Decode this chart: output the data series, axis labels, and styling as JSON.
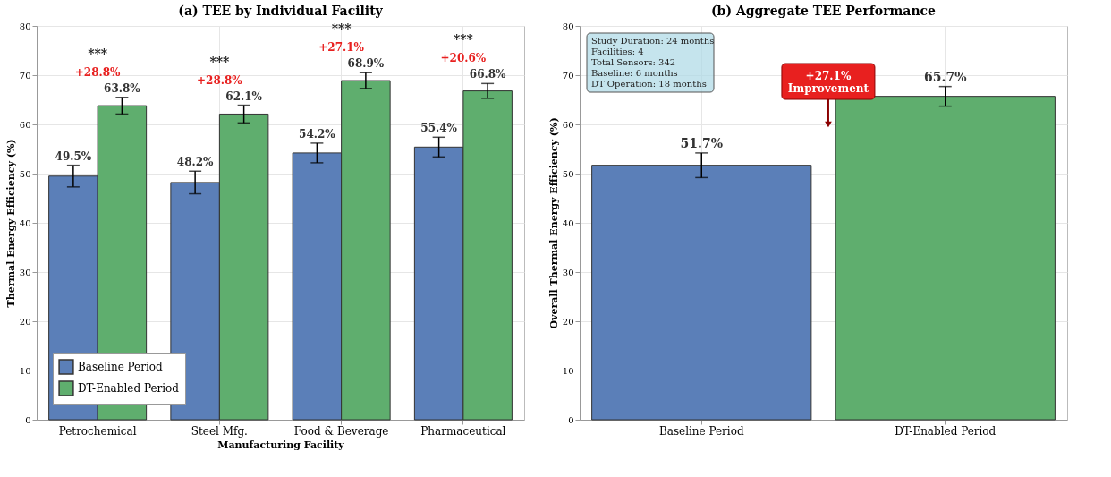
{
  "chart_data": [
    {
      "type": "bar",
      "title": "(a) TEE by Individual Facility",
      "xlabel": "Manufacturing Facility",
      "ylabel": "Thermal Energy Efficiency (%)",
      "categories": [
        "Petrochemical",
        "Steel Mfg.",
        "Food & Beverage",
        "Pharmaceutical"
      ],
      "series": [
        {
          "name": "Baseline Period",
          "color": "#5b7fb8",
          "values": [
            49.5,
            48.2,
            54.2,
            55.4
          ],
          "errors": [
            2.2,
            2.3,
            2.0,
            2.0
          ],
          "value_labels": [
            "49.5%",
            "48.2%",
            "54.2%",
            "55.4%"
          ]
        },
        {
          "name": "DT-Enabled Period",
          "color": "#5fae6e",
          "values": [
            63.8,
            62.1,
            68.9,
            66.8
          ],
          "errors": [
            1.7,
            1.8,
            1.6,
            1.5
          ],
          "value_labels": [
            "63.8%",
            "62.1%",
            "68.9%",
            "66.8%"
          ]
        }
      ],
      "ylim": [
        0,
        80
      ],
      "yticks": [
        0,
        10,
        20,
        30,
        40,
        50,
        60,
        70,
        80
      ],
      "grid": true,
      "legend": "bottom left",
      "annotations": [
        "***",
        "+28.8%",
        "***",
        "+28.8%",
        "***",
        "+27.1%",
        "***",
        "+20.6%"
      ]
    },
    {
      "type": "bar",
      "title": "(b) Aggregate TEE Performance",
      "ylabel": "Overall Thermal Energy Efficiency (%)",
      "categories": [
        "Baseline Period",
        "DT-Enabled Period"
      ],
      "values": [
        51.7,
        65.7
      ],
      "errors": [
        2.5,
        2.0
      ],
      "value_labels": [
        "51.7%",
        "65.7%"
      ],
      "colors": [
        "#5b7fb8",
        "#5fae6e"
      ],
      "ylim": [
        0,
        80
      ],
      "yticks": [
        0,
        10,
        20,
        30,
        40,
        50,
        60,
        70,
        80
      ],
      "grid": true,
      "annotations": [
        "Study Duration: 24 months\nFacilities: 4\nTotal Sensors: 342\nBaseline: 6 months\nDT Operation: 18 months",
        "+27.1%\nImprovement"
      ]
    }
  ]
}
